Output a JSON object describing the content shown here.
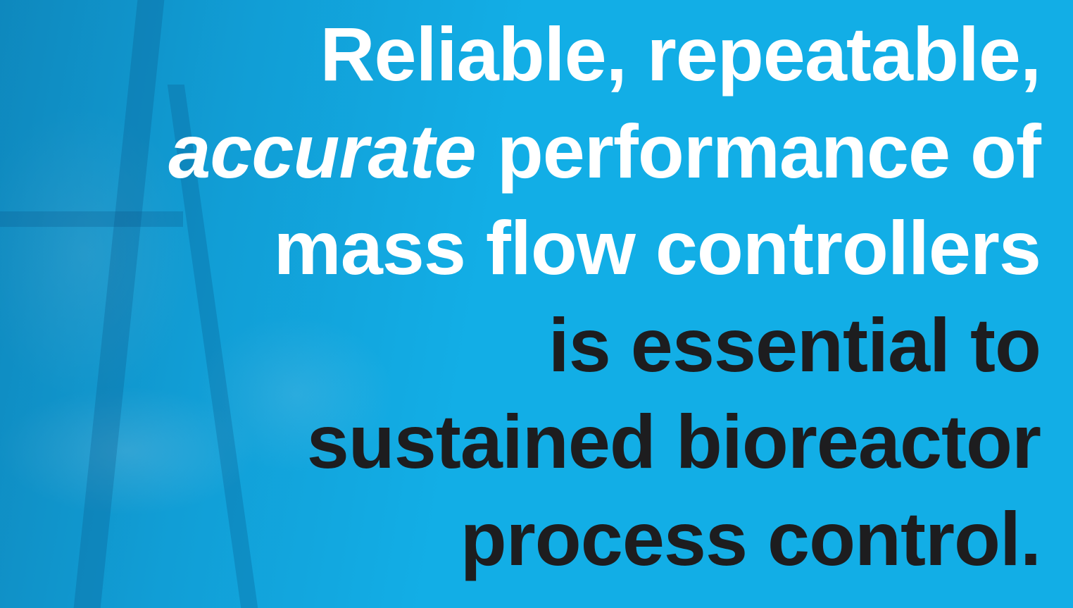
{
  "headline": {
    "lines": [
      [
        "Reliable, repeatable,"
      ],
      [
        "accurate",
        "performance of"
      ],
      [
        "mass flow controllers"
      ],
      [
        "is essential to"
      ],
      [
        "sustained bioreactor"
      ],
      [
        "process control."
      ]
    ]
  }
}
